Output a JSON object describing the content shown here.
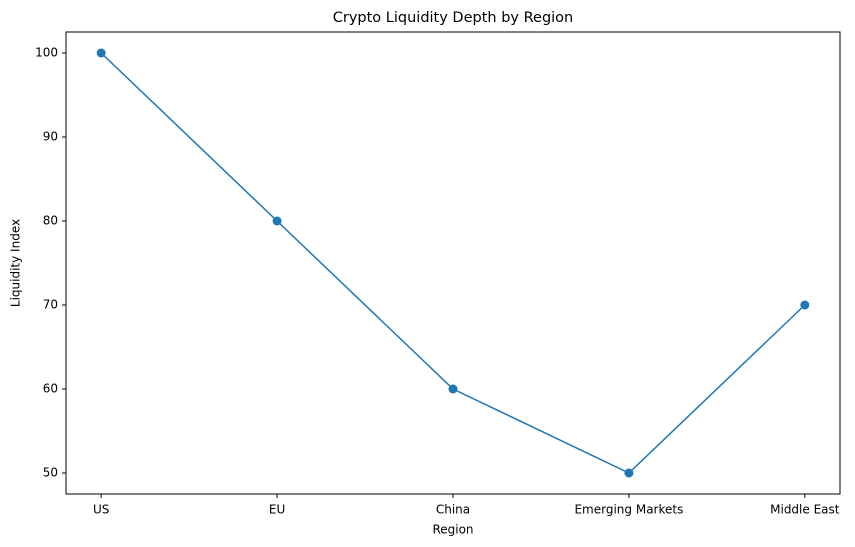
{
  "chart_data": {
    "type": "line",
    "title": "Crypto Liquidity Depth by Region",
    "x_label": "Region",
    "y_label": "Liquidity Index",
    "categories": [
      "US",
      "EU",
      "China",
      "Emerging Markets",
      "Middle East"
    ],
    "values": [
      100,
      80,
      60,
      50,
      70
    ],
    "color": "#1f77b4",
    "ylim": [
      47.5,
      102.5
    ],
    "yticks": [
      50,
      60,
      70,
      80,
      90,
      100
    ],
    "grid": false
  }
}
